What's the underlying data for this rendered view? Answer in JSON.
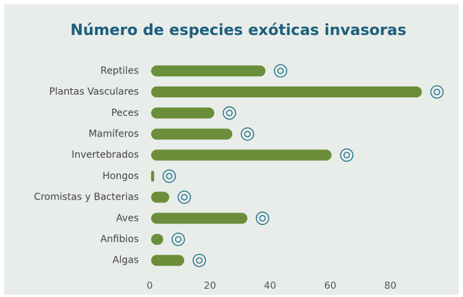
{
  "chart_data": {
    "type": "barh",
    "title": "Número de especies exóticas invasoras",
    "categories": [
      "Reptiles",
      "Plantas Vasculares",
      "Peces",
      "Mamíferos",
      "Invertebrados",
      "Hongos",
      "Cromistas y Bacterias",
      "Aves",
      "Anfibios",
      "Algas"
    ],
    "values": [
      38,
      90,
      21,
      27,
      60,
      1,
      6,
      32,
      4,
      11
    ],
    "color": "#6b8e3a",
    "xlim": [
      0,
      95
    ],
    "xticks": [
      0,
      20,
      40,
      60,
      80
    ],
    "grid": false
  }
}
